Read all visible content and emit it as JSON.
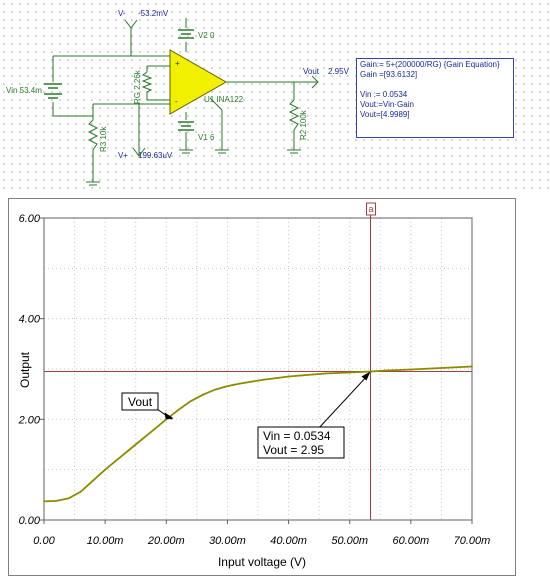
{
  "schematic": {
    "vminus_label": "V-",
    "vminus_value": "-53.2mV",
    "vplus_label": "V+",
    "vplus_value": "199.63uV",
    "vin_label": "Vin 53.4m",
    "rg_label": "RG 2.26k",
    "r3_label": "R3 10k",
    "r2_label": "R2 100k",
    "v2_label": "V2 0",
    "v1_label": "V1 6",
    "u1_label": "U1 INA122",
    "vout_label": "Vout",
    "vout_value": "2.95V",
    "opamp_color": "#f0f000",
    "wire_color": "#2a7a2a"
  },
  "equations": {
    "line1": "Gain:= 5+(200000/RG)  {Gain Equation}",
    "line2": "Gain =[93.6132]",
    "line3": "Vin := 0.0534",
    "line4": "Vout:=Vin·Gain",
    "line5": "Vout=[4.9989]"
  },
  "chart_data": {
    "type": "line",
    "ylabel": "Output",
    "xlabel": "Input voltage (V)",
    "xlim": [
      0,
      0.07
    ],
    "ylim": [
      0,
      6
    ],
    "x_ticks": [
      "0.00",
      "10.00m",
      "20.00m",
      "30.00m",
      "40.00m",
      "50.00m",
      "60.00m",
      "70.00m"
    ],
    "y_ticks": [
      "0.00",
      "2.00",
      "4.00",
      "6.00"
    ],
    "series": [
      {
        "name": "Vout",
        "color": "#8b8b00",
        "x": [
          0,
          0.002,
          0.004,
          0.006,
          0.008,
          0.01,
          0.012,
          0.014,
          0.016,
          0.018,
          0.02,
          0.022,
          0.024,
          0.026,
          0.028,
          0.03,
          0.032,
          0.034,
          0.036,
          0.038,
          0.04,
          0.042,
          0.044,
          0.046,
          0.048,
          0.05,
          0.0534,
          0.056,
          0.06,
          0.065,
          0.07
        ],
        "y": [
          0.37,
          0.38,
          0.43,
          0.56,
          0.78,
          1.0,
          1.2,
          1.4,
          1.6,
          1.8,
          2.0,
          2.19,
          2.36,
          2.49,
          2.59,
          2.66,
          2.71,
          2.75,
          2.79,
          2.82,
          2.85,
          2.87,
          2.89,
          2.91,
          2.92,
          2.93,
          2.95,
          2.97,
          2.99,
          3.02,
          3.05
        ]
      }
    ],
    "cursor": {
      "label": "a",
      "x": 0.0534,
      "y": 2.95,
      "color": "#a04040"
    },
    "annotations": [
      {
        "text": "Vout",
        "target_x": 0.0212,
        "target_y": 2.02
      },
      {
        "lines": [
          "Vin = 0.0534",
          "Vout = 2.95"
        ],
        "target_x": 0.0534,
        "target_y": 2.95
      }
    ],
    "grid": true,
    "grid_color": "#c8c8c8"
  }
}
